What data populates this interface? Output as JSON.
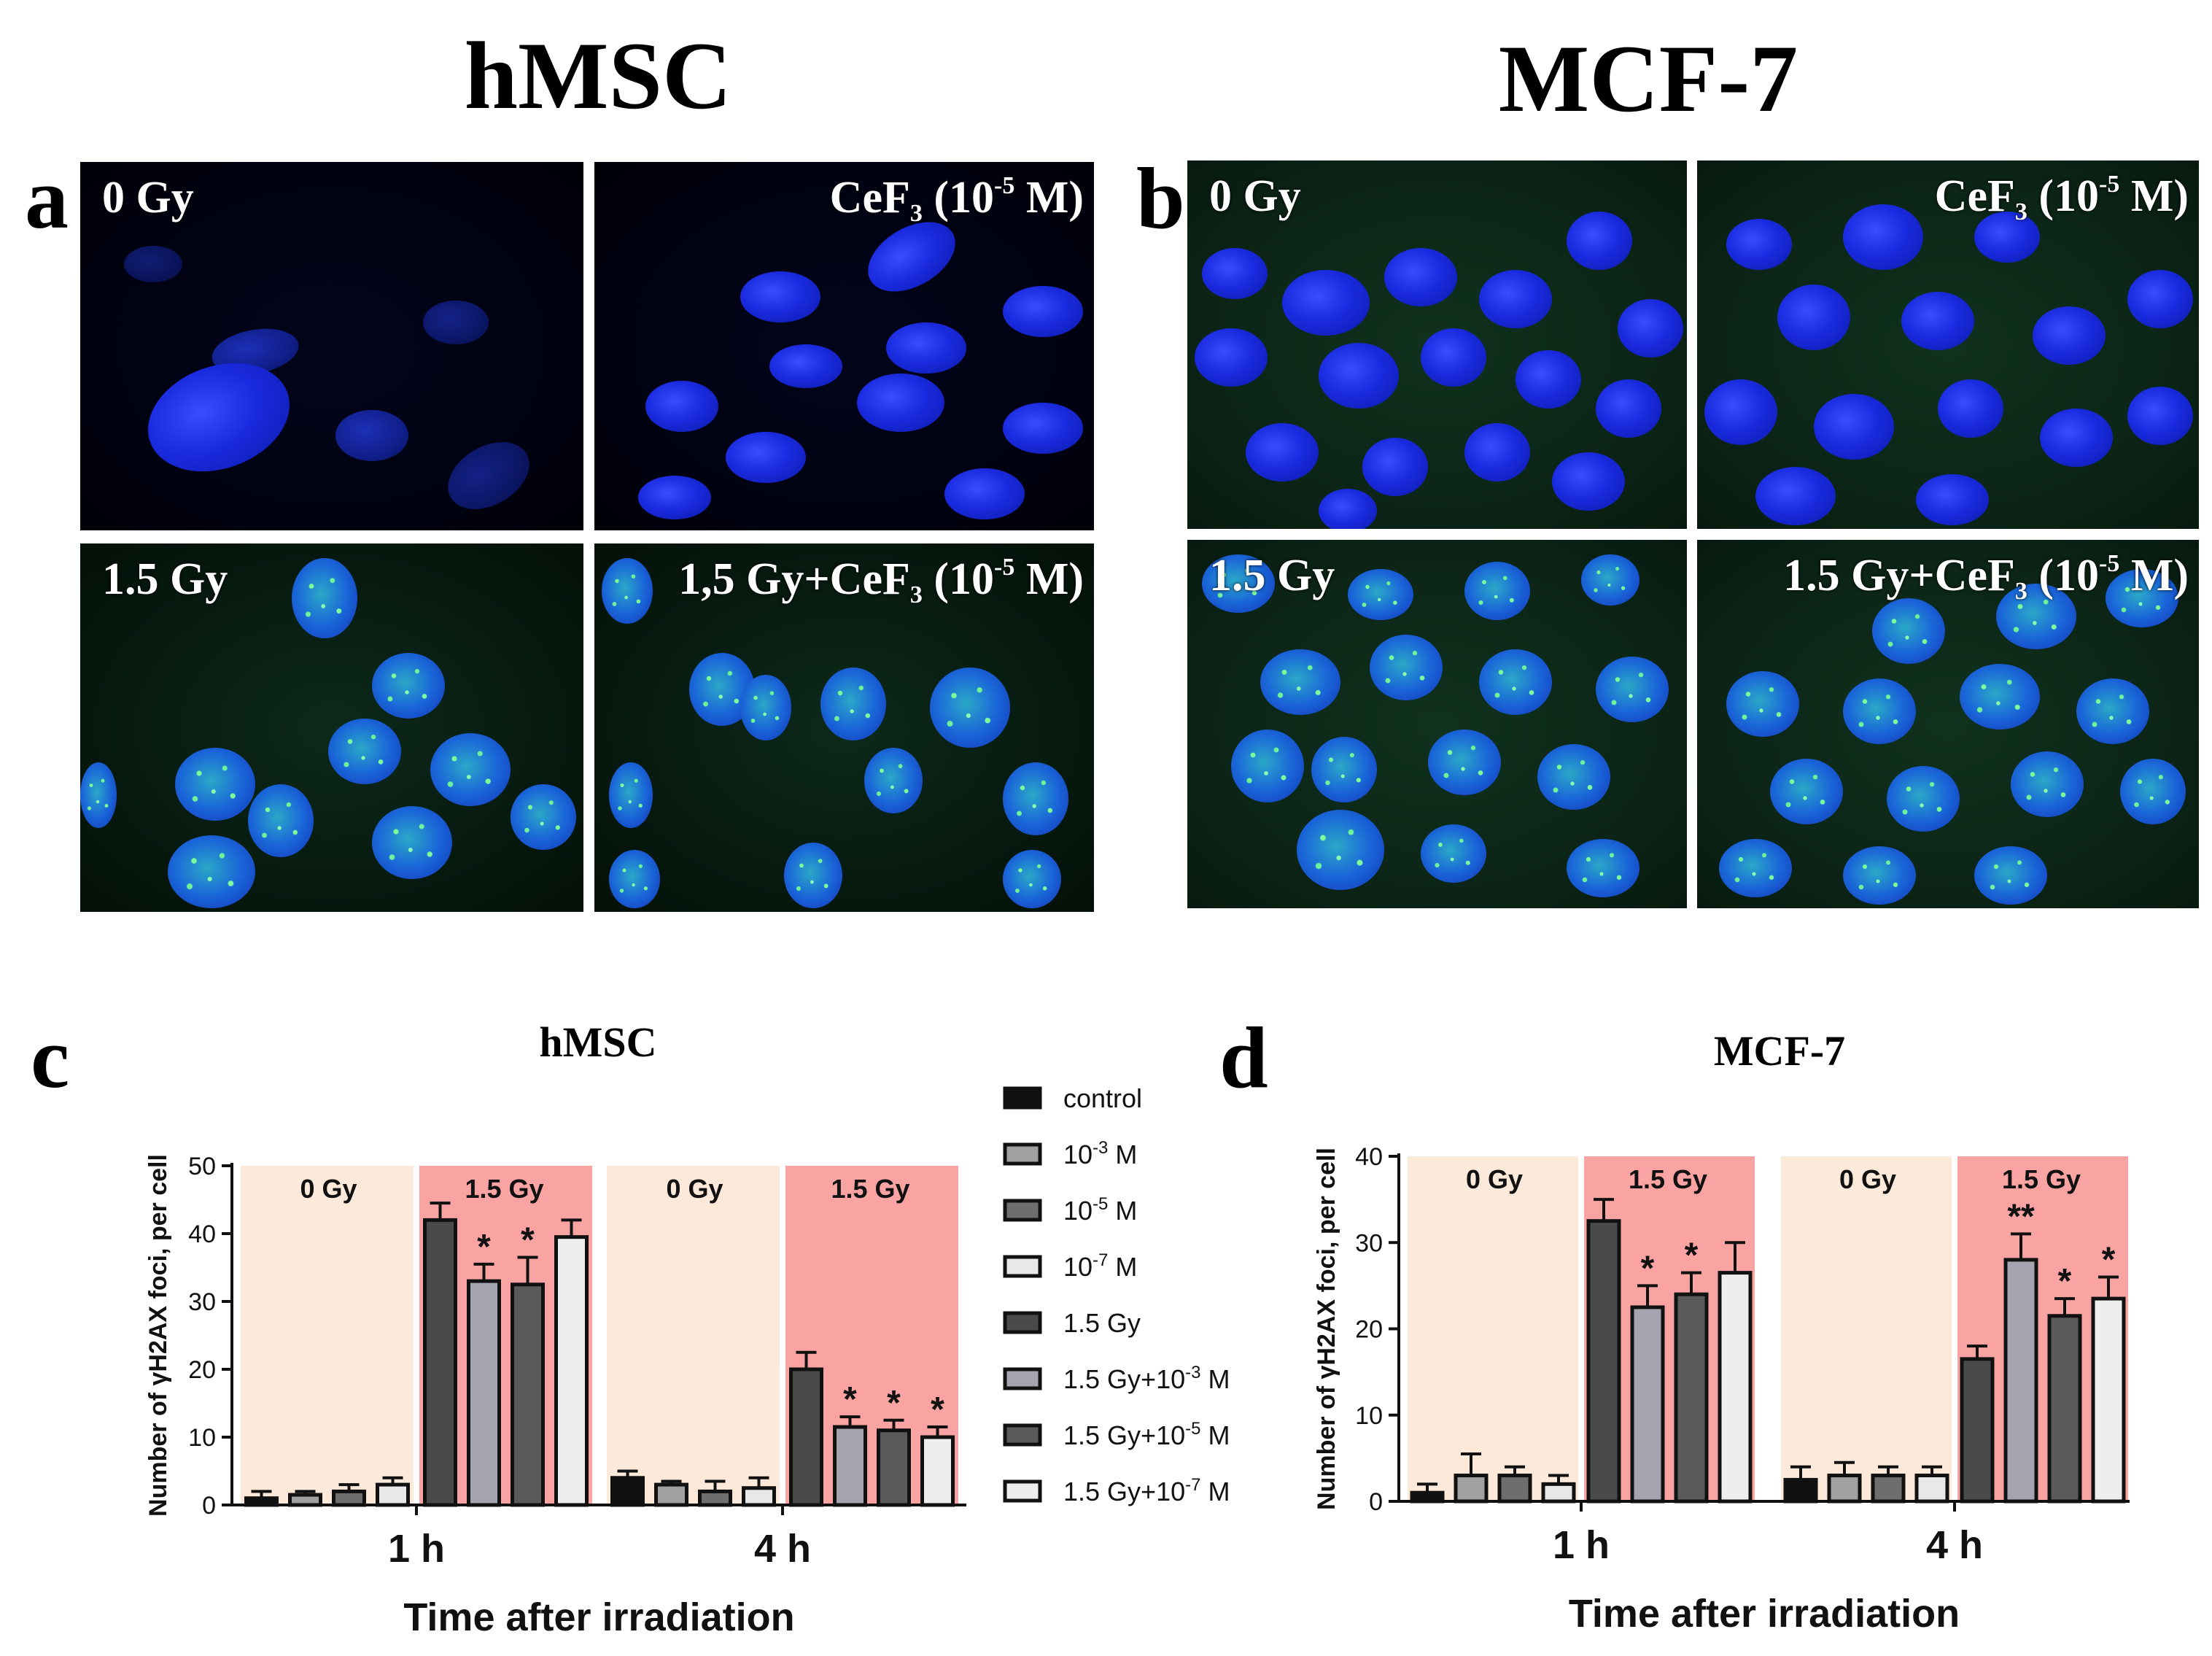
{
  "columns": {
    "left_title": "hMSC",
    "right_title": "MCF-7"
  },
  "panel_letters": {
    "a": "a",
    "b": "b",
    "c": "c",
    "d": "d"
  },
  "micrographs": {
    "hmsc_0gy": "0 Gy",
    "hmsc_cef3": {
      "main": "CeF",
      "sub": "3",
      "pre": " (10",
      "sup": "-5",
      "post": " M)"
    },
    "hmsc_15gy": "1.5 Gy",
    "hmsc_15gy_cef3": {
      "main": "1,5 Gy+CeF",
      "sub": "3",
      "pre": " (10",
      "sup": "-5",
      "post": " M)"
    },
    "mcf_0gy": "0 Gy",
    "mcf_cef3": {
      "main": "CeF",
      "sub": "3",
      "pre": " (10",
      "sup": "-5",
      "post": " M)"
    },
    "mcf_15gy": "1.5 Gy",
    "mcf_15gy_cef3": {
      "main": "1.5 Gy+CeF",
      "sub": "3",
      "pre": " (10",
      "sup": "-5",
      "post": " M)"
    }
  },
  "colors": {
    "bg_0gy": "#fde9d9",
    "bg_15gy": "#f9a3a3",
    "bar_control": "#111111",
    "bar_1e3": "#a0a0a0",
    "bar_1e5": "#6e6e6e",
    "bar_1e7": "#e8e8e8",
    "bar_15": "#4a4a4a",
    "bar_15_1e3": "#a4a4b0",
    "bar_15_1e5": "#5a5a5a",
    "bar_15_1e7": "#eeeeee"
  },
  "legend": [
    {
      "label": "control",
      "color_key": "bar_control"
    },
    {
      "label": "10",
      "sup": "-3",
      "post": " M",
      "color_key": "bar_1e3"
    },
    {
      "label": "10",
      "sup": "-5",
      "post": " M",
      "color_key": "bar_1e5"
    },
    {
      "label": "10",
      "sup": "-7",
      "post": " M",
      "color_key": "bar_1e7"
    },
    {
      "label": "1.5 Gy",
      "color_key": "bar_15"
    },
    {
      "label": "1.5 Gy+10",
      "sup": "-3",
      "post": " M",
      "color_key": "bar_15_1e3"
    },
    {
      "label": "1.5 Gy+10",
      "sup": "-5",
      "post": " M",
      "color_key": "bar_15_1e5"
    },
    {
      "label": "1.5 Gy+10",
      "sup": "-7",
      "post": " M",
      "color_key": "bar_15_1e7"
    }
  ],
  "chart_data": [
    {
      "type": "bar",
      "title": "hMSC",
      "xlabel": "Time after irradiation",
      "ylabel": "Number of γH2AX foci, per cell",
      "ylim": [
        0,
        50
      ],
      "yticks": [
        0,
        10,
        20,
        30,
        40,
        50
      ],
      "groups": [
        {
          "label": "1 h",
          "bands": [
            "0 Gy",
            "1.5 Gy"
          ],
          "bars": [
            {
              "series": "control",
              "value": 1,
              "err": 1,
              "sig": ""
            },
            {
              "series": "10-3 M",
              "value": 1.5,
              "err": 0.5,
              "sig": ""
            },
            {
              "series": "10-5 M",
              "value": 2,
              "err": 1,
              "sig": ""
            },
            {
              "series": "10-7 M",
              "value": 3,
              "err": 1,
              "sig": ""
            },
            {
              "series": "1.5 Gy",
              "value": 42,
              "err": 2.5,
              "sig": ""
            },
            {
              "series": "1.5 Gy+10-3 M",
              "value": 33,
              "err": 2.5,
              "sig": "*"
            },
            {
              "series": "1.5 Gy+10-5 M",
              "value": 32.5,
              "err": 4,
              "sig": "*"
            },
            {
              "series": "1.5 Gy+10-7 M",
              "value": 39.5,
              "err": 2.5,
              "sig": ""
            }
          ]
        },
        {
          "label": "4 h",
          "bands": [
            "0 Gy",
            "1.5 Gy"
          ],
          "bars": [
            {
              "series": "control",
              "value": 4,
              "err": 1,
              "sig": ""
            },
            {
              "series": "10-3 M",
              "value": 3,
              "err": 0.5,
              "sig": ""
            },
            {
              "series": "10-5 M",
              "value": 2,
              "err": 1.5,
              "sig": ""
            },
            {
              "series": "10-7 M",
              "value": 2.5,
              "err": 1.5,
              "sig": ""
            },
            {
              "series": "1.5 Gy",
              "value": 20,
              "err": 2.5,
              "sig": ""
            },
            {
              "series": "1.5 Gy+10-3 M",
              "value": 11.5,
              "err": 1.5,
              "sig": "*"
            },
            {
              "series": "1.5 Gy+10-5 M",
              "value": 11,
              "err": 1.5,
              "sig": "*"
            },
            {
              "series": "1.5 Gy+10-7 M",
              "value": 10,
              "err": 1.5,
              "sig": "*"
            }
          ]
        }
      ]
    },
    {
      "type": "bar",
      "title": "MCF-7",
      "xlabel": "Time after irradiation",
      "ylabel": "Number of γH2AX foci, per cell",
      "ylim": [
        0,
        40
      ],
      "yticks": [
        0,
        10,
        20,
        30,
        40
      ],
      "groups": [
        {
          "label": "1 h",
          "bands": [
            "0 Gy",
            "1.5 Gy"
          ],
          "bars": [
            {
              "series": "control",
              "value": 1,
              "err": 1,
              "sig": ""
            },
            {
              "series": "10-3 M",
              "value": 3,
              "err": 2.5,
              "sig": ""
            },
            {
              "series": "10-5 M",
              "value": 3,
              "err": 1,
              "sig": ""
            },
            {
              "series": "10-7 M",
              "value": 2,
              "err": 1,
              "sig": ""
            },
            {
              "series": "1.5 Gy",
              "value": 32.5,
              "err": 2.5,
              "sig": ""
            },
            {
              "series": "1.5 Gy+10-3 M",
              "value": 22.5,
              "err": 2.5,
              "sig": "*"
            },
            {
              "series": "1.5 Gy+10-5 M",
              "value": 24,
              "err": 2.5,
              "sig": "*"
            },
            {
              "series": "1.5 Gy+10-7 M",
              "value": 26.5,
              "err": 3.5,
              "sig": ""
            }
          ]
        },
        {
          "label": "4 h",
          "bands": [
            "0 Gy",
            "1.5 Gy"
          ],
          "bars": [
            {
              "series": "control",
              "value": 2.5,
              "err": 1.5,
              "sig": ""
            },
            {
              "series": "10-3 M",
              "value": 3,
              "err": 1.5,
              "sig": ""
            },
            {
              "series": "10-5 M",
              "value": 3,
              "err": 1,
              "sig": ""
            },
            {
              "series": "10-7 M",
              "value": 3,
              "err": 1,
              "sig": ""
            },
            {
              "series": "1.5 Gy",
              "value": 16.5,
              "err": 1.5,
              "sig": ""
            },
            {
              "series": "1.5 Gy+10-3 M",
              "value": 28,
              "err": 3,
              "sig": "**"
            },
            {
              "series": "1.5 Gy+10-5 M",
              "value": 21.5,
              "err": 2,
              "sig": "*"
            },
            {
              "series": "1.5 Gy+10-7 M",
              "value": 23.5,
              "err": 2.5,
              "sig": "*"
            }
          ]
        }
      ]
    }
  ]
}
